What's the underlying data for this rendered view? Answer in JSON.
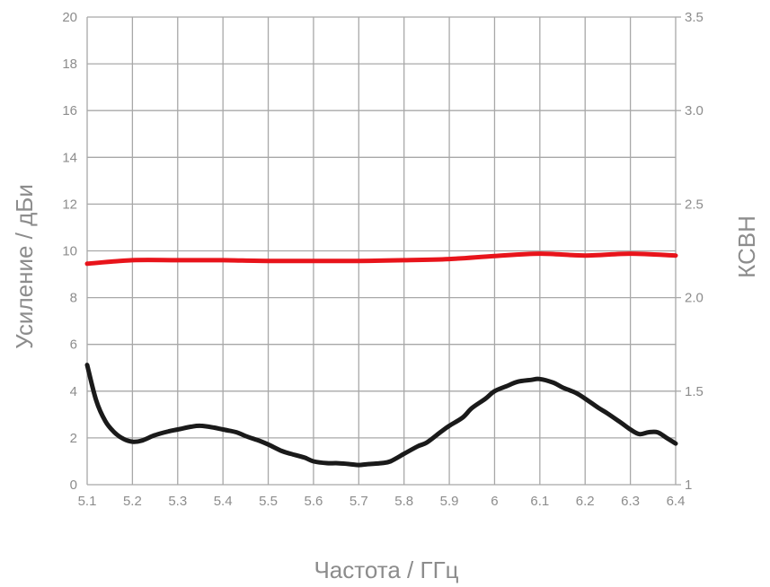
{
  "chart_data": {
    "type": "line",
    "xlabel": "Частота / ГГц",
    "ylabel_left": "Усиление / дБи",
    "ylabel_right": "КСВН",
    "grid": true,
    "xlim": [
      5.1,
      6.4
    ],
    "ylim_left": [
      0,
      20
    ],
    "ylim_right": [
      1,
      3.5
    ],
    "x_ticks": [
      "5.1",
      "5.2",
      "5.3",
      "5.4",
      "5.5",
      "5.6",
      "5.7",
      "5.8",
      "5.9",
      "6",
      "6.1",
      "6.2",
      "6.3",
      "6.4"
    ],
    "y_left_ticks": [
      "0",
      "2",
      "4",
      "6",
      "8",
      "10",
      "12",
      "14",
      "16",
      "18",
      "20"
    ],
    "y_right_ticks": [
      "1",
      "1.5",
      "2.0",
      "2.5",
      "3.0",
      "3.5"
    ],
    "series": [
      {
        "axis": "left",
        "color": "#e8141b",
        "x": [
          5.1,
          5.2,
          5.3,
          5.4,
          5.5,
          5.6,
          5.7,
          5.8,
          5.9,
          6.0,
          6.1,
          6.2,
          6.3,
          6.4
        ],
        "y": [
          9.45,
          9.6,
          9.6,
          9.6,
          9.57,
          9.57,
          9.57,
          9.6,
          9.65,
          9.78,
          9.88,
          9.8,
          9.88,
          9.8
        ]
      },
      {
        "axis": "right",
        "color": "#1a1a1a",
        "x": [
          5.1,
          5.12,
          5.14,
          5.16,
          5.18,
          5.2,
          5.22,
          5.25,
          5.28,
          5.3,
          5.33,
          5.35,
          5.38,
          5.4,
          5.43,
          5.45,
          5.48,
          5.5,
          5.53,
          5.55,
          5.58,
          5.6,
          5.63,
          5.65,
          5.68,
          5.7,
          5.72,
          5.75,
          5.77,
          5.8,
          5.83,
          5.85,
          5.88,
          5.9,
          5.93,
          5.95,
          5.98,
          6.0,
          6.03,
          6.05,
          6.08,
          6.1,
          6.13,
          6.15,
          6.18,
          6.2,
          6.23,
          6.25,
          6.28,
          6.3,
          6.32,
          6.34,
          6.36,
          6.38,
          6.4
        ],
        "y": [
          1.64,
          1.45,
          1.34,
          1.28,
          1.245,
          1.23,
          1.235,
          1.265,
          1.285,
          1.295,
          1.31,
          1.315,
          1.305,
          1.295,
          1.28,
          1.26,
          1.235,
          1.215,
          1.18,
          1.165,
          1.145,
          1.125,
          1.115,
          1.115,
          1.11,
          1.105,
          1.11,
          1.115,
          1.125,
          1.165,
          1.205,
          1.225,
          1.28,
          1.315,
          1.36,
          1.41,
          1.46,
          1.5,
          1.53,
          1.55,
          1.56,
          1.565,
          1.545,
          1.52,
          1.49,
          1.46,
          1.41,
          1.38,
          1.33,
          1.295,
          1.27,
          1.28,
          1.28,
          1.25,
          1.22
        ]
      }
    ]
  }
}
